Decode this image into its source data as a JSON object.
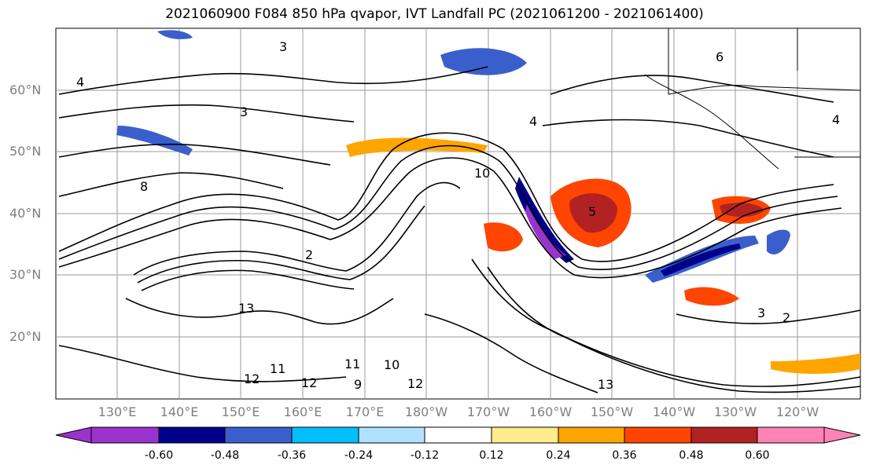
{
  "title": "2021060900 F084 850 hPa qvapor, IVT Landfall PC (2021061200 - 2021061400)",
  "lat_labels": [
    "60°N",
    "50°N",
    "40°N",
    "30°N",
    "20°N"
  ],
  "lon_labels": [
    "130°E",
    "140°E",
    "150°E",
    "160°E",
    "170°E",
    "180°W",
    "170°W",
    "160°W",
    "150°W",
    "140°W",
    "130°W",
    "120°W"
  ],
  "colorbar": {
    "colors": [
      "#9a32cd",
      "#00008b",
      "#3a5fcd",
      "#00bfff",
      "#b0e2ff",
      "#ffffff",
      "#ffec8b",
      "#ffa500",
      "#ff4500",
      "#b22222",
      "#ff83b4"
    ],
    "ticks": [
      "-0.60",
      "-0.48",
      "-0.36",
      "-0.24",
      "-0.12",
      "0.12",
      "0.24",
      "0.36",
      "0.48",
      "0.60"
    ]
  },
  "contour_labels": [
    "3",
    "3",
    "4",
    "4",
    "5",
    "6",
    "8",
    "10",
    "12",
    "13",
    "11",
    "12",
    "12",
    "9",
    "10",
    "11",
    "13",
    "4",
    "2",
    "3",
    "2"
  ],
  "colors": {
    "land_line": "#000000",
    "grid": "#9a9a9a"
  }
}
